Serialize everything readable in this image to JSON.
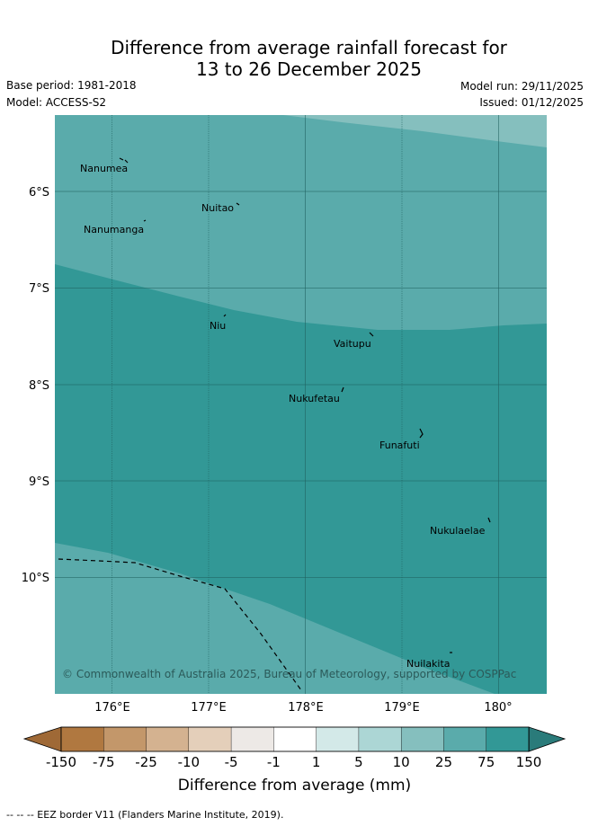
{
  "title": {
    "line1": "Difference from average rainfall forecast for",
    "line2": "13 to 26 December 2025"
  },
  "meta": {
    "base_period": "Base period: 1981-2018",
    "model": "Model: ACCESS-S2",
    "model_run": "Model run: 29/11/2025",
    "issued": "Issued: 01/12/2025"
  },
  "map": {
    "lat_labels": [
      "6°S",
      "7°S",
      "8°S",
      "9°S",
      "10°S"
    ],
    "lon_labels": [
      "176°E",
      "177°E",
      "178°E",
      "179°E",
      "180°"
    ],
    "islands": [
      "Nanumea",
      "Nuitao",
      "Nanumanga",
      "Niu",
      "Vaitupu",
      "Nukufetau",
      "Funafuti",
      "Nukulaelae",
      "Nuilakita"
    ],
    "copyright": "© Commonwealth of Australia 2025, Bureau of Meteorology, supported by COSPPac",
    "zone_colors": {
      "pale_top": "#85bfbe",
      "medium": "#5aabab",
      "dark": "#329896"
    }
  },
  "colorbar": {
    "ticks": [
      "-150",
      "-75",
      "-25",
      "-10",
      "-5",
      "-1",
      "1",
      "5",
      "10",
      "25",
      "75",
      "150"
    ],
    "colors": [
      "#b07840",
      "#c3976a",
      "#d4b290",
      "#e4cfba",
      "#ede9e6",
      "#ffffff",
      "#d3e9e8",
      "#acd6d5",
      "#85bfbe",
      "#5aabab",
      "#329896"
    ],
    "under_color": "#9f6936",
    "over_color": "#2a7b7a",
    "label": "Difference from average (mm)"
  },
  "legend_note": "--  --  -- EEZ border V11 (Flanders Marine Institute, 2019)."
}
